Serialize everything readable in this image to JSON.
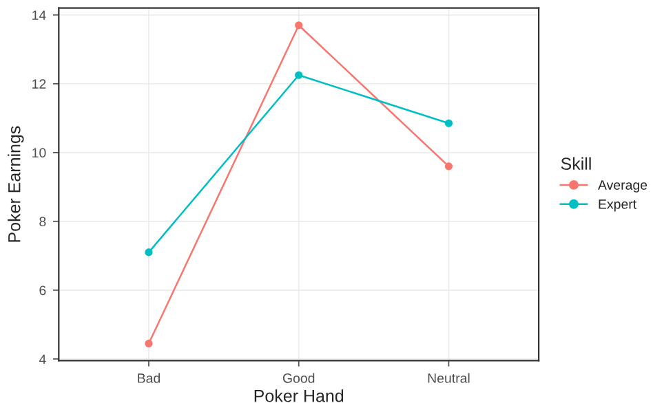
{
  "chart_data": {
    "type": "line",
    "xlabel": "Poker Hand",
    "ylabel": "Poker Earnings",
    "legend_title": "Skill",
    "categories": [
      "Bad",
      "Good",
      "Neutral"
    ],
    "series": [
      {
        "name": "Average",
        "color": "#f8766d",
        "values": [
          4.45,
          13.7,
          9.6
        ]
      },
      {
        "name": "Expert",
        "color": "#00bfc4",
        "values": [
          7.1,
          12.25,
          10.85
        ]
      }
    ],
    "ylim": [
      3.95,
      14.2
    ],
    "yticks": [
      4,
      6,
      8,
      10,
      12,
      14
    ],
    "grid": true,
    "legend": "right",
    "marker": "circle",
    "line_style": "solid"
  }
}
